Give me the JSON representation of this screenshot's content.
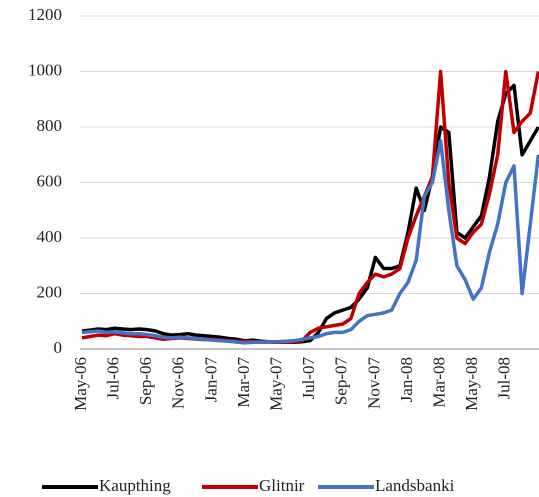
{
  "chart_data": {
    "type": "line",
    "categories": [
      "May-06",
      null,
      null,
      null,
      "Jul-06",
      null,
      null,
      null,
      "Sep-06",
      null,
      null,
      null,
      "Nov-06",
      null,
      null,
      null,
      "Jan-07",
      null,
      null,
      null,
      "Mar-07",
      null,
      null,
      null,
      "May-07",
      null,
      null,
      null,
      "Jul-07",
      null,
      null,
      null,
      "Sep-07",
      null,
      null,
      null,
      "Nov-07",
      null,
      null,
      null,
      "Jan-08",
      null,
      null,
      null,
      "Mar-08",
      null,
      null,
      null,
      "May-08",
      null,
      null,
      null,
      "Jul-08",
      null,
      null,
      null,
      null
    ],
    "series": [
      {
        "name": "Kaupthing",
        "color": "#000000",
        "values": [
          65,
          68,
          72,
          70,
          75,
          72,
          70,
          72,
          70,
          65,
          55,
          50,
          52,
          55,
          50,
          48,
          45,
          42,
          38,
          35,
          30,
          32,
          28,
          26,
          25,
          25,
          24,
          26,
          30,
          60,
          110,
          130,
          140,
          150,
          180,
          220,
          330,
          290,
          290,
          300,
          420,
          580,
          500,
          620,
          800,
          780,
          420,
          400,
          440,
          480,
          620,
          820,
          920,
          950,
          700,
          750,
          800
        ]
      },
      {
        "name": "Glitnir",
        "color": "#c00000",
        "values": [
          40,
          45,
          50,
          48,
          55,
          50,
          48,
          45,
          45,
          40,
          35,
          38,
          40,
          38,
          36,
          34,
          35,
          33,
          30,
          28,
          28,
          26,
          25,
          25,
          24,
          25,
          26,
          30,
          60,
          75,
          80,
          85,
          90,
          110,
          200,
          240,
          270,
          260,
          270,
          290,
          400,
          480,
          550,
          620,
          1000,
          600,
          400,
          380,
          420,
          450,
          560,
          700,
          1000,
          780,
          820,
          850,
          1000
        ]
      },
      {
        "name": "Landsbanki",
        "color": "#4472c4",
        "values": [
          60,
          62,
          65,
          60,
          62,
          58,
          55,
          55,
          52,
          48,
          42,
          40,
          42,
          40,
          38,
          35,
          32,
          30,
          28,
          25,
          22,
          24,
          25,
          26,
          26,
          28,
          30,
          35,
          40,
          45,
          55,
          60,
          60,
          70,
          100,
          120,
          125,
          130,
          140,
          200,
          240,
          320,
          550,
          600,
          750,
          500,
          300,
          250,
          180,
          220,
          350,
          450,
          600,
          660,
          200,
          450,
          700
        ]
      }
    ],
    "ylim": [
      0,
      1200
    ],
    "yticks": [
      0,
      200,
      400,
      600,
      800,
      1000,
      1200
    ],
    "grid": true
  }
}
